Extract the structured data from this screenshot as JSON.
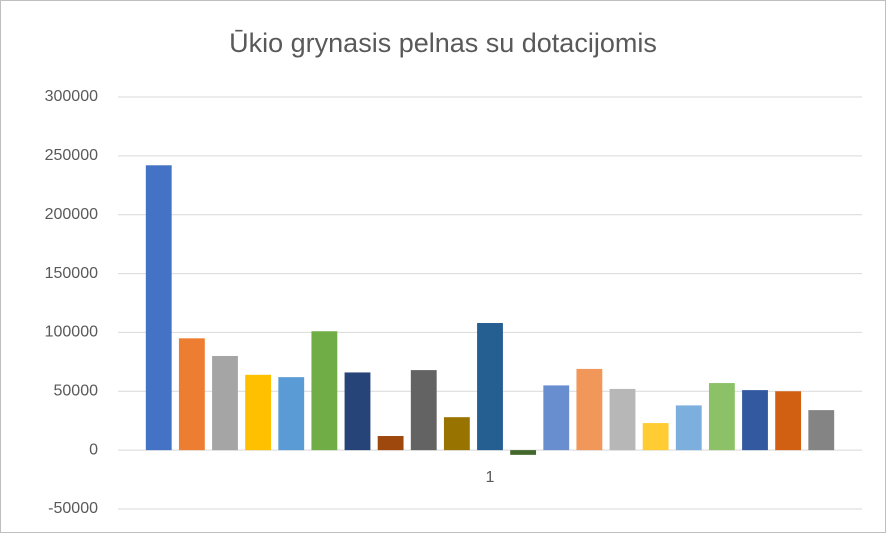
{
  "chart_data": {
    "type": "bar",
    "title": "Ūkio grynasis pelnas su dotacijomis",
    "categories": [
      "1"
    ],
    "series": [
      {
        "color": "#4472c4",
        "values": [
          242000
        ]
      },
      {
        "color": "#ed7d31",
        "values": [
          95000
        ]
      },
      {
        "color": "#a5a5a5",
        "values": [
          80000
        ]
      },
      {
        "color": "#ffc000",
        "values": [
          64000
        ]
      },
      {
        "color": "#5b9bd5",
        "values": [
          62000
        ]
      },
      {
        "color": "#70ad47",
        "values": [
          101000
        ]
      },
      {
        "color": "#264478",
        "values": [
          66000
        ]
      },
      {
        "color": "#9e480e",
        "values": [
          12000
        ]
      },
      {
        "color": "#636363",
        "values": [
          68000
        ]
      },
      {
        "color": "#997300",
        "values": [
          28000
        ]
      },
      {
        "color": "#255e91",
        "values": [
          108000
        ]
      },
      {
        "color": "#43682b",
        "values": [
          -4000
        ]
      },
      {
        "color": "#698ed0",
        "values": [
          55000
        ]
      },
      {
        "color": "#f1975a",
        "values": [
          69000
        ]
      },
      {
        "color": "#b7b7b7",
        "values": [
          52000
        ]
      },
      {
        "color": "#ffcd33",
        "values": [
          23000
        ]
      },
      {
        "color": "#7cafdd",
        "values": [
          38000
        ]
      },
      {
        "color": "#8cc168",
        "values": [
          57000
        ]
      },
      {
        "color": "#335aa1",
        "values": [
          51000
        ]
      },
      {
        "color": "#d26012",
        "values": [
          50000
        ]
      },
      {
        "color": "#848484",
        "values": [
          34000
        ]
      }
    ],
    "ylim": [
      -50000,
      300000
    ],
    "yticks": [
      -50000,
      0,
      50000,
      100000,
      150000,
      200000,
      250000,
      300000
    ],
    "grid": true
  }
}
